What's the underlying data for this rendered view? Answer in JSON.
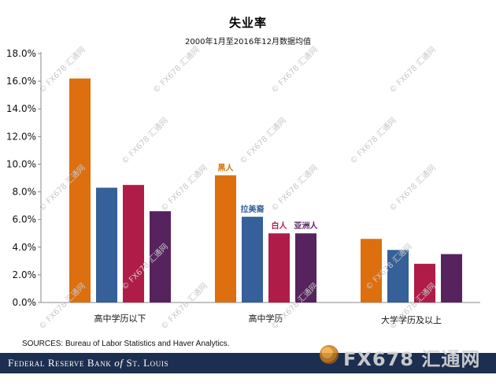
{
  "chart_data": {
    "type": "bar",
    "title": "失业率",
    "subtitle": "2000年1月至2016年12月数据均值",
    "categories": [
      "高中学历以下",
      "高中学历",
      "大学学历及以上"
    ],
    "series": [
      {
        "name": "黑人",
        "color": "#dd6f0e",
        "values": [
          16.2,
          9.2,
          4.6
        ]
      },
      {
        "name": "拉美裔",
        "color": "#356099",
        "values": [
          8.3,
          6.2,
          3.8
        ]
      },
      {
        "name": "白人",
        "color": "#b01c48",
        "values": [
          8.5,
          5.0,
          2.8
        ]
      },
      {
        "name": "亚洲人",
        "color": "#56235f",
        "values": [
          6.6,
          5.0,
          3.5
        ]
      }
    ],
    "ylim": [
      0,
      18
    ],
    "yticks": [
      "0.0%",
      "2.0%",
      "4.0%",
      "6.0%",
      "8.0%",
      "10.0%",
      "12.0%",
      "14.0%",
      "16.0%",
      "18.0%"
    ],
    "xlabel": "",
    "ylabel": "",
    "grid": false,
    "legend": "inline labels above middle group",
    "source": "SOURCES: Bureau of Labor Statistics and Haver Analytics."
  },
  "footer": {
    "title_prefix": "F",
    "title_word1": "ederal",
    "title_r": "R",
    "title_word2": "eserve",
    "title_b": "B",
    "title_word3": "ank",
    "title_of": "of",
    "title_st": "S",
    "title_word4": "t.",
    "title_l": "L",
    "title_word5": "ouis",
    "background": "#1d2f50"
  },
  "watermark": {
    "text": "FX678 汇通网",
    "footer_text": "FX678 汇通网"
  }
}
